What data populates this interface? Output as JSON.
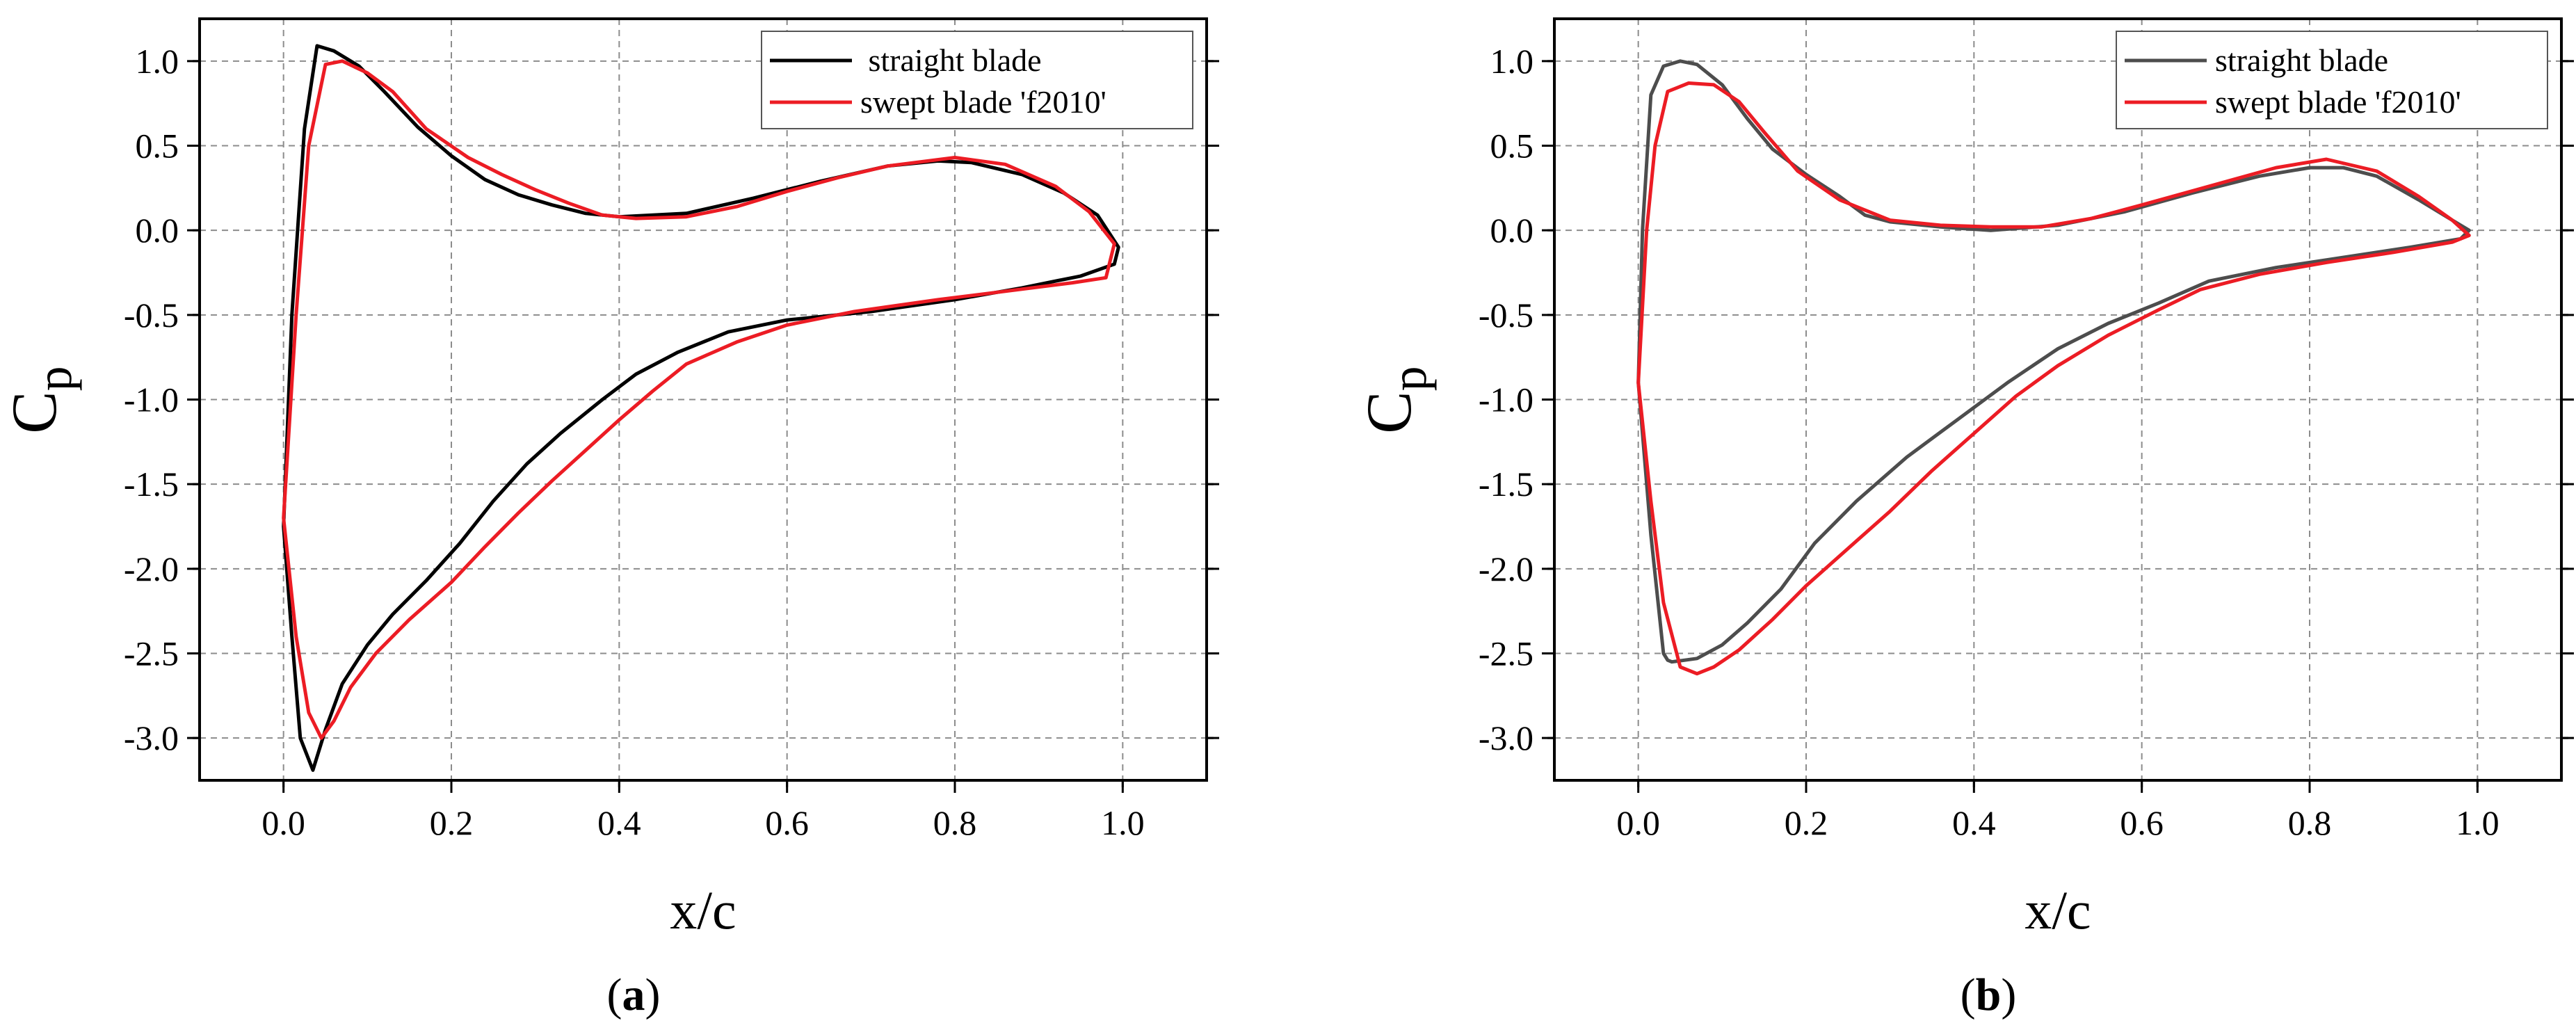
{
  "chart_data": [
    {
      "type": "line",
      "panel_label": "(a)",
      "panel_letter": "a",
      "xlabel": "x/c",
      "ylabel": {
        "base": "C",
        "sub": "p"
      },
      "xlim": [
        -0.1,
        1.1
      ],
      "ylim": [
        -3.25,
        1.25
      ],
      "xticks": [
        0.0,
        0.2,
        0.4,
        0.6,
        0.8,
        1.0
      ],
      "xtick_labels": [
        "0.0",
        "0.2",
        "0.4",
        "0.6",
        "0.8",
        "1.0"
      ],
      "yticks": [
        1.0,
        0.5,
        0.0,
        -0.5,
        -1.0,
        -1.5,
        -2.0,
        -2.5,
        -3.0
      ],
      "ytick_labels": [
        "1.0",
        "0.5",
        "0.0",
        "-0.5",
        "-1.0",
        "-1.5",
        "-2.0",
        "-2.5",
        "-3.0"
      ],
      "grid": true,
      "legend_position": "top-right",
      "series": [
        {
          "name": " straight blade",
          "color": "#000000",
          "points": [
            [
              0.0,
              -1.75
            ],
            [
              0.01,
              -0.5
            ],
            [
              0.025,
              0.6
            ],
            [
              0.04,
              1.09
            ],
            [
              0.06,
              1.06
            ],
            [
              0.09,
              0.97
            ],
            [
              0.12,
              0.82
            ],
            [
              0.16,
              0.61
            ],
            [
              0.2,
              0.44
            ],
            [
              0.24,
              0.3
            ],
            [
              0.28,
              0.21
            ],
            [
              0.32,
              0.15
            ],
            [
              0.36,
              0.1
            ],
            [
              0.4,
              0.08
            ],
            [
              0.48,
              0.1
            ],
            [
              0.56,
              0.19
            ],
            [
              0.64,
              0.29
            ],
            [
              0.72,
              0.38
            ],
            [
              0.78,
              0.41
            ],
            [
              0.82,
              0.4
            ],
            [
              0.88,
              0.33
            ],
            [
              0.93,
              0.22
            ],
            [
              0.97,
              0.09
            ],
            [
              0.995,
              -0.1
            ],
            [
              0.99,
              -0.2
            ],
            [
              0.95,
              -0.27
            ],
            [
              0.88,
              -0.34
            ],
            [
              0.8,
              -0.41
            ],
            [
              0.7,
              -0.48
            ],
            [
              0.6,
              -0.53
            ],
            [
              0.53,
              -0.6
            ],
            [
              0.47,
              -0.72
            ],
            [
              0.42,
              -0.85
            ],
            [
              0.38,
              -1.0
            ],
            [
              0.33,
              -1.2
            ],
            [
              0.29,
              -1.38
            ],
            [
              0.25,
              -1.6
            ],
            [
              0.21,
              -1.85
            ],
            [
              0.17,
              -2.07
            ],
            [
              0.13,
              -2.27
            ],
            [
              0.1,
              -2.45
            ],
            [
              0.07,
              -2.68
            ],
            [
              0.05,
              -2.95
            ],
            [
              0.035,
              -3.19
            ],
            [
              0.02,
              -3.0
            ],
            [
              0.01,
              -2.4
            ],
            [
              0.0,
              -1.75
            ]
          ]
        },
        {
          "name": "swept blade 'f2010'",
          "color": "#ec1c24",
          "points": [
            [
              0.0,
              -1.7
            ],
            [
              0.015,
              -0.5
            ],
            [
              0.03,
              0.5
            ],
            [
              0.05,
              0.98
            ],
            [
              0.07,
              1.0
            ],
            [
              0.1,
              0.93
            ],
            [
              0.13,
              0.82
            ],
            [
              0.17,
              0.6
            ],
            [
              0.22,
              0.43
            ],
            [
              0.26,
              0.33
            ],
            [
              0.3,
              0.24
            ],
            [
              0.34,
              0.16
            ],
            [
              0.38,
              0.09
            ],
            [
              0.42,
              0.07
            ],
            [
              0.48,
              0.08
            ],
            [
              0.54,
              0.14
            ],
            [
              0.6,
              0.23
            ],
            [
              0.66,
              0.31
            ],
            [
              0.72,
              0.38
            ],
            [
              0.8,
              0.43
            ],
            [
              0.86,
              0.39
            ],
            [
              0.92,
              0.26
            ],
            [
              0.96,
              0.11
            ],
            [
              0.99,
              -0.08
            ],
            [
              0.98,
              -0.28
            ],
            [
              0.94,
              -0.31
            ],
            [
              0.86,
              -0.36
            ],
            [
              0.78,
              -0.41
            ],
            [
              0.68,
              -0.48
            ],
            [
              0.6,
              -0.56
            ],
            [
              0.54,
              -0.66
            ],
            [
              0.48,
              -0.79
            ],
            [
              0.44,
              -0.95
            ],
            [
              0.4,
              -1.12
            ],
            [
              0.36,
              -1.3
            ],
            [
              0.32,
              -1.48
            ],
            [
              0.28,
              -1.67
            ],
            [
              0.24,
              -1.87
            ],
            [
              0.2,
              -2.08
            ],
            [
              0.15,
              -2.3
            ],
            [
              0.11,
              -2.5
            ],
            [
              0.08,
              -2.7
            ],
            [
              0.06,
              -2.9
            ],
            [
              0.045,
              -3.0
            ],
            [
              0.03,
              -2.85
            ],
            [
              0.015,
              -2.4
            ],
            [
              0.0,
              -1.7
            ]
          ]
        }
      ]
    },
    {
      "type": "line",
      "panel_label": "(b)",
      "panel_letter": "b",
      "xlabel": "x/c",
      "ylabel": {
        "base": "C",
        "sub": "p"
      },
      "xlim": [
        -0.1,
        1.1
      ],
      "ylim": [
        -3.25,
        1.25
      ],
      "xticks": [
        0.0,
        0.2,
        0.4,
        0.6,
        0.8,
        1.0
      ],
      "xtick_labels": [
        "0.0",
        "0.2",
        "0.4",
        "0.6",
        "0.8",
        "1.0"
      ],
      "yticks": [
        1.0,
        0.5,
        0.0,
        -0.5,
        -1.0,
        -1.5,
        -2.0,
        -2.5,
        -3.0
      ],
      "ytick_labels": [
        "1.0",
        "0.5",
        "0.0",
        "-0.5",
        "-1.0",
        "-1.5",
        "-2.0",
        "-2.5",
        "-3.0"
      ],
      "grid": true,
      "legend_position": "top-right",
      "series": [
        {
          "name": "straight blade",
          "color": "#4d4d4d",
          "points": [
            [
              0.0,
              -0.9
            ],
            [
              0.005,
              0.0
            ],
            [
              0.015,
              0.8
            ],
            [
              0.03,
              0.97
            ],
            [
              0.05,
              1.0
            ],
            [
              0.07,
              0.98
            ],
            [
              0.1,
              0.86
            ],
            [
              0.13,
              0.66
            ],
            [
              0.16,
              0.48
            ],
            [
              0.2,
              0.33
            ],
            [
              0.24,
              0.2
            ],
            [
              0.27,
              0.09
            ],
            [
              0.3,
              0.05
            ],
            [
              0.36,
              0.02
            ],
            [
              0.42,
              0.0
            ],
            [
              0.5,
              0.03
            ],
            [
              0.58,
              0.11
            ],
            [
              0.66,
              0.22
            ],
            [
              0.74,
              0.32
            ],
            [
              0.8,
              0.37
            ],
            [
              0.84,
              0.37
            ],
            [
              0.88,
              0.32
            ],
            [
              0.93,
              0.18
            ],
            [
              0.97,
              0.06
            ],
            [
              0.99,
              0.0
            ],
            [
              0.98,
              -0.05
            ],
            [
              0.92,
              -0.1
            ],
            [
              0.84,
              -0.16
            ],
            [
              0.76,
              -0.22
            ],
            [
              0.68,
              -0.3
            ],
            [
              0.62,
              -0.43
            ],
            [
              0.56,
              -0.55
            ],
            [
              0.5,
              -0.7
            ],
            [
              0.44,
              -0.9
            ],
            [
              0.38,
              -1.12
            ],
            [
              0.32,
              -1.34
            ],
            [
              0.26,
              -1.6
            ],
            [
              0.21,
              -1.85
            ],
            [
              0.17,
              -2.12
            ],
            [
              0.13,
              -2.32
            ],
            [
              0.1,
              -2.45
            ],
            [
              0.07,
              -2.53
            ],
            [
              0.04,
              -2.55
            ],
            [
              0.035,
              -2.54
            ],
            [
              0.03,
              -2.5
            ],
            [
              0.015,
              -1.8
            ],
            [
              0.0,
              -0.9
            ]
          ]
        },
        {
          "name": "swept blade 'f2010'",
          "color": "#ec1c24",
          "points": [
            [
              0.0,
              -0.9
            ],
            [
              0.01,
              0.0
            ],
            [
              0.02,
              0.5
            ],
            [
              0.035,
              0.82
            ],
            [
              0.06,
              0.87
            ],
            [
              0.09,
              0.86
            ],
            [
              0.12,
              0.76
            ],
            [
              0.15,
              0.58
            ],
            [
              0.19,
              0.35
            ],
            [
              0.24,
              0.18
            ],
            [
              0.3,
              0.06
            ],
            [
              0.36,
              0.03
            ],
            [
              0.42,
              0.02
            ],
            [
              0.48,
              0.02
            ],
            [
              0.54,
              0.07
            ],
            [
              0.6,
              0.15
            ],
            [
              0.68,
              0.26
            ],
            [
              0.76,
              0.37
            ],
            [
              0.82,
              0.42
            ],
            [
              0.88,
              0.35
            ],
            [
              0.93,
              0.2
            ],
            [
              0.97,
              0.06
            ],
            [
              0.99,
              -0.03
            ],
            [
              0.97,
              -0.07
            ],
            [
              0.9,
              -0.13
            ],
            [
              0.82,
              -0.19
            ],
            [
              0.74,
              -0.26
            ],
            [
              0.67,
              -0.35
            ],
            [
              0.62,
              -0.47
            ],
            [
              0.56,
              -0.62
            ],
            [
              0.5,
              -0.8
            ],
            [
              0.45,
              -0.98
            ],
            [
              0.4,
              -1.2
            ],
            [
              0.35,
              -1.42
            ],
            [
              0.3,
              -1.66
            ],
            [
              0.25,
              -1.88
            ],
            [
              0.2,
              -2.1
            ],
            [
              0.16,
              -2.3
            ],
            [
              0.12,
              -2.48
            ],
            [
              0.09,
              -2.58
            ],
            [
              0.07,
              -2.62
            ],
            [
              0.05,
              -2.58
            ],
            [
              0.03,
              -2.2
            ],
            [
              0.015,
              -1.6
            ],
            [
              0.0,
              -0.9
            ]
          ]
        }
      ]
    }
  ]
}
